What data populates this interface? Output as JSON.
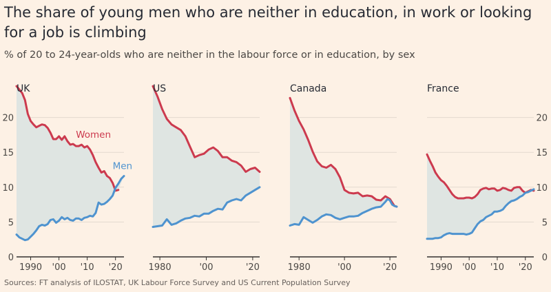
{
  "title": "The share of young men who are neither in education, in work or looking for a job is climbing",
  "subtitle": "% of 20 to 24-year-olds who are neither in the labour force or in education, by sex",
  "source": "Sources: FT analysis of ILOSTAT, UK Labour Force Survey and US Current Population Survey",
  "colors": {
    "women": "#cc3a4e",
    "men": "#4e93cf",
    "fill": "#dfe5e2",
    "grid": "#e3d9cf",
    "axis": "#33302e"
  },
  "chart_data": [
    {
      "type": "area",
      "panel": "UK",
      "xlim": [
        1985,
        2023
      ],
      "ylim": [
        0,
        25
      ],
      "yticks": [
        0,
        5,
        10,
        15,
        20
      ],
      "xticks": [
        1990,
        2000,
        2010,
        2020
      ],
      "xtick_labels": [
        "1990",
        "'00",
        "'10",
        "'20"
      ],
      "ytick_side": "left",
      "series": [
        {
          "name": "Women",
          "x": [
            1985,
            1986,
            1987,
            1988,
            1989,
            1990,
            1991,
            1992,
            1993,
            1994,
            1995,
            1996,
            1997,
            1998,
            1999,
            2000,
            2001,
            2002,
            2003,
            2004,
            2005,
            2006,
            2007,
            2008,
            2009,
            2010,
            2011,
            2012,
            2013,
            2014,
            2015,
            2016,
            2017,
            2018,
            2019,
            2020,
            2021
          ],
          "values": [
            24.5,
            24,
            23.5,
            22.5,
            20.5,
            19.5,
            19,
            18.6,
            18.8,
            19,
            18.9,
            18.5,
            17.8,
            16.9,
            16.9,
            17.3,
            16.8,
            17.3,
            16.6,
            16.1,
            16.2,
            15.9,
            15.9,
            16.1,
            15.7,
            15.9,
            15.4,
            14.6,
            13.6,
            12.8,
            12.1,
            12.3,
            11.6,
            11.3,
            10.6,
            9.5,
            9.6
          ]
        },
        {
          "name": "Men",
          "x": [
            1985,
            1986,
            1987,
            1988,
            1989,
            1990,
            1991,
            1992,
            1993,
            1994,
            1995,
            1996,
            1997,
            1998,
            1999,
            2000,
            2001,
            2002,
            2003,
            2004,
            2005,
            2006,
            2007,
            2008,
            2009,
            2010,
            2011,
            2012,
            2013,
            2014,
            2015,
            2016,
            2017,
            2018,
            2019,
            2020,
            2021,
            2022,
            2023
          ],
          "values": [
            3.2,
            2.8,
            2.6,
            2.4,
            2.5,
            2.9,
            3.3,
            3.8,
            4.4,
            4.6,
            4.5,
            4.7,
            5.3,
            5.4,
            4.9,
            5.2,
            5.7,
            5.4,
            5.6,
            5.3,
            5.2,
            5.5,
            5.5,
            5.3,
            5.6,
            5.7,
            5.9,
            5.8,
            6.3,
            7.8,
            7.5,
            7.6,
            7.9,
            8.3,
            8.8,
            9.9,
            10.5,
            11.2,
            11.6
          ]
        }
      ],
      "annotations": [
        {
          "text": "Women",
          "series": "Women",
          "x": 2006,
          "y": 17.1
        },
        {
          "text": "Men",
          "series": "Men",
          "x": 2019,
          "y": 12.6
        }
      ]
    },
    {
      "type": "area",
      "panel": "US",
      "xlim": [
        1977,
        2023
      ],
      "ylim": [
        0,
        25
      ],
      "yticks": [
        0,
        5,
        10,
        15,
        20
      ],
      "xticks": [
        1980,
        2000,
        2020
      ],
      "xtick_labels": [
        "1980",
        "'00",
        "'20"
      ],
      "series": [
        {
          "name": "Women",
          "x": [
            1977,
            1979,
            1981,
            1983,
            1985,
            1987,
            1989,
            1991,
            1993,
            1995,
            1997,
            1999,
            2001,
            2003,
            2005,
            2007,
            2009,
            2011,
            2013,
            2015,
            2017,
            2019,
            2021,
            2023
          ],
          "values": [
            24.5,
            23,
            21.2,
            19.8,
            19,
            18.6,
            18.2,
            17.3,
            15.8,
            14.3,
            14.6,
            14.8,
            15.4,
            15.7,
            15.2,
            14.3,
            14.3,
            13.8,
            13.6,
            13.1,
            12.2,
            12.6,
            12.8,
            12.2
          ]
        },
        {
          "name": "Men",
          "x": [
            1977,
            1979,
            1981,
            1983,
            1985,
            1987,
            1989,
            1991,
            1993,
            1995,
            1997,
            1999,
            2001,
            2003,
            2005,
            2007,
            2009,
            2011,
            2013,
            2015,
            2017,
            2019,
            2021,
            2023
          ],
          "values": [
            4.3,
            4.4,
            4.5,
            5.4,
            4.6,
            4.8,
            5.2,
            5.5,
            5.6,
            5.9,
            5.8,
            6.2,
            6.2,
            6.6,
            6.9,
            6.8,
            7.8,
            8.1,
            8.3,
            8.1,
            8.8,
            9.2,
            9.6,
            10
          ]
        }
      ]
    },
    {
      "type": "area",
      "panel": "Canada",
      "xlim": [
        1976,
        2023
      ],
      "ylim": [
        0,
        25
      ],
      "yticks": [
        0,
        5,
        10,
        15,
        20
      ],
      "xticks": [
        1980,
        2000,
        2020
      ],
      "xtick_labels": [
        "1980",
        "'00",
        "'20"
      ],
      "series": [
        {
          "name": "Women",
          "x": [
            1976,
            1978,
            1980,
            1982,
            1984,
            1986,
            1988,
            1990,
            1992,
            1994,
            1996,
            1998,
            2000,
            2002,
            2004,
            2006,
            2008,
            2010,
            2012,
            2014,
            2016,
            2018,
            2019,
            2020,
            2021,
            2022,
            2023
          ],
          "values": [
            22.8,
            21,
            19.5,
            18.3,
            16.8,
            15.1,
            13.7,
            13,
            12.8,
            13.2,
            12.6,
            11.4,
            9.6,
            9.2,
            9.1,
            9.2,
            8.7,
            8.8,
            8.7,
            8.2,
            8.1,
            8.7,
            8.5,
            8.3,
            7.8,
            7.3,
            7.2
          ]
        },
        {
          "name": "Men",
          "x": [
            1976,
            1978,
            1980,
            1982,
            1984,
            1986,
            1988,
            1990,
            1992,
            1994,
            1996,
            1998,
            2000,
            2002,
            2004,
            2006,
            2008,
            2010,
            2012,
            2014,
            2016,
            2018,
            2019,
            2020,
            2021,
            2022,
            2023
          ],
          "values": [
            4.5,
            4.7,
            4.6,
            5.7,
            5.3,
            4.9,
            5.3,
            5.8,
            6.1,
            6,
            5.6,
            5.4,
            5.6,
            5.8,
            5.8,
            5.9,
            6.3,
            6.6,
            6.9,
            7.1,
            7.2,
            7.9,
            8.3,
            8.1,
            7.5,
            7.3,
            7.2
          ]
        }
      ]
    },
    {
      "type": "area",
      "panel": "France",
      "xlim": [
        1985,
        2023
      ],
      "ylim": [
        0,
        25
      ],
      "yticks": [
        0,
        5,
        10,
        15,
        20
      ],
      "xticks": [
        1990,
        2000,
        2010,
        2020
      ],
      "xtick_labels": [
        "1990",
        "'00",
        "'10",
        "'20"
      ],
      "ytick_side": "right",
      "series": [
        {
          "name": "Women",
          "x": [
            1985,
            1986,
            1987,
            1988,
            1989,
            1990,
            1991,
            1992,
            1993,
            1994,
            1995,
            1996,
            1997,
            1998,
            1999,
            2000,
            2001,
            2002,
            2003,
            2004,
            2005,
            2006,
            2007,
            2008,
            2009,
            2010,
            2011,
            2012,
            2013,
            2014,
            2015,
            2016,
            2017,
            2018,
            2019,
            2020,
            2021,
            2022,
            2023
          ],
          "values": [
            14.7,
            13.8,
            13,
            12.1,
            11.5,
            11,
            10.7,
            10.2,
            9.6,
            9,
            8.6,
            8.4,
            8.4,
            8.4,
            8.5,
            8.5,
            8.4,
            8.6,
            9,
            9.6,
            9.8,
            9.9,
            9.7,
            9.8,
            9.8,
            9.5,
            9.6,
            9.9,
            9.8,
            9.6,
            9.5,
            9.9,
            10,
            10,
            9.5,
            9.2,
            9.4,
            9.6,
            9.5
          ]
        },
        {
          "name": "Men",
          "x": [
            1985,
            1986,
            1987,
            1988,
            1989,
            1990,
            1991,
            1992,
            1993,
            1994,
            1995,
            1996,
            1997,
            1998,
            1999,
            2000,
            2001,
            2002,
            2003,
            2004,
            2005,
            2006,
            2007,
            2008,
            2009,
            2010,
            2011,
            2012,
            2013,
            2014,
            2015,
            2016,
            2017,
            2018,
            2019,
            2020,
            2021,
            2022,
            2023
          ],
          "values": [
            2.6,
            2.6,
            2.6,
            2.7,
            2.7,
            2.8,
            3.1,
            3.3,
            3.4,
            3.3,
            3.3,
            3.3,
            3.3,
            3.3,
            3.2,
            3.3,
            3.5,
            4.1,
            4.7,
            5.1,
            5.3,
            5.7,
            5.9,
            6.1,
            6.5,
            6.5,
            6.6,
            6.8,
            7.3,
            7.7,
            8,
            8.1,
            8.3,
            8.6,
            8.8,
            9.2,
            9.3,
            9.5,
            9.7
          ]
        }
      ]
    }
  ]
}
